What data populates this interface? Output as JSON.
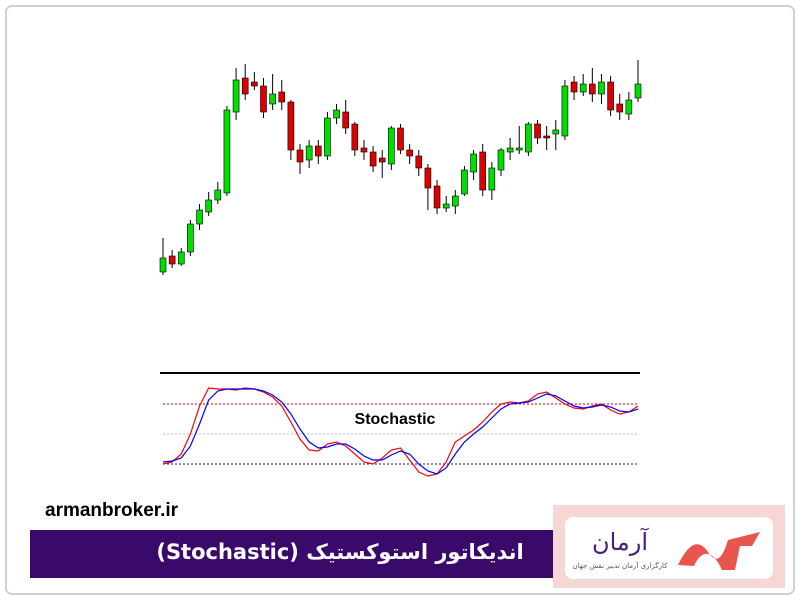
{
  "chart_data": [
    {
      "type": "candlestick",
      "up_color": "#00dd00",
      "down_color": "#dd0000",
      "wick_color": "#000000",
      "ylim": [
        20,
        240
      ],
      "open": [
        28,
        44,
        36,
        48,
        76,
        88,
        100,
        107,
        188,
        222,
        218,
        214,
        196,
        208,
        198,
        150,
        140,
        154,
        144,
        182,
        188,
        176,
        152,
        148,
        142,
        136,
        172,
        150,
        144,
        132,
        114,
        92,
        94,
        106,
        128,
        148,
        110,
        130,
        148,
        150,
        148,
        176,
        164,
        166,
        164,
        218,
        208,
        216,
        206,
        218,
        196,
        186,
        202
      ],
      "high": [
        62,
        50,
        52,
        80,
        96,
        108,
        118,
        194,
        232,
        236,
        228,
        222,
        226,
        220,
        200,
        156,
        160,
        160,
        188,
        196,
        200,
        178,
        160,
        154,
        150,
        174,
        176,
        156,
        150,
        136,
        120,
        104,
        110,
        134,
        150,
        156,
        138,
        152,
        162,
        174,
        178,
        180,
        174,
        180,
        220,
        224,
        226,
        232,
        226,
        224,
        206,
        208,
        240
      ],
      "low": [
        25,
        32,
        34,
        44,
        70,
        84,
        96,
        104,
        180,
        200,
        210,
        182,
        190,
        190,
        140,
        126,
        132,
        136,
        140,
        176,
        166,
        144,
        140,
        128,
        122,
        130,
        146,
        136,
        124,
        90,
        86,
        88,
        86,
        104,
        120,
        104,
        100,
        124,
        140,
        146,
        144,
        156,
        150,
        150,
        160,
        200,
        204,
        198,
        196,
        184,
        180,
        180,
        198
      ],
      "close": [
        42,
        36,
        48,
        76,
        90,
        100,
        110,
        190,
        220,
        206,
        214,
        188,
        206,
        198,
        150,
        138,
        154,
        144,
        182,
        190,
        172,
        150,
        148,
        134,
        138,
        172,
        150,
        144,
        132,
        112,
        92,
        96,
        104,
        130,
        146,
        110,
        132,
        150,
        152,
        152,
        176,
        162,
        162,
        170,
        214,
        208,
        216,
        206,
        218,
        190,
        188,
        200,
        216
      ]
    },
    {
      "type": "line",
      "title": "Stochastic",
      "ylim": [
        0,
        100
      ],
      "levels": [
        80,
        50,
        20
      ],
      "level_colors": [
        "#cc0000",
        "#bbbbbb",
        "#1a1a8c"
      ],
      "series": [
        {
          "color": "#ff0000",
          "values": [
            20,
            22,
            30,
            50,
            78,
            96,
            95,
            95,
            94,
            96,
            95,
            92,
            87,
            78,
            62,
            45,
            34,
            33,
            40,
            42,
            38,
            30,
            22,
            20,
            26,
            34,
            36,
            24,
            12,
            8,
            10,
            22,
            42,
            48,
            54,
            62,
            72,
            80,
            82,
            81,
            83,
            90,
            92,
            86,
            80,
            76,
            75,
            78,
            80,
            74,
            70,
            72,
            78
          ]
        },
        {
          "color": "#0000ff",
          "values": [
            22,
            23,
            26,
            38,
            60,
            84,
            93,
            95,
            95,
            95,
            95,
            93,
            89,
            82,
            70,
            55,
            42,
            36,
            37,
            40,
            40,
            35,
            28,
            24,
            24,
            29,
            33,
            30,
            20,
            13,
            10,
            16,
            30,
            42,
            50,
            57,
            66,
            75,
            80,
            81,
            82,
            86,
            90,
            88,
            83,
            78,
            76,
            77,
            79,
            77,
            73,
            72,
            75
          ]
        }
      ]
    }
  ],
  "footer": {
    "site": "armanbroker.ir",
    "banner": "اندیکاتور استوکستیک (Stochastic)",
    "logo_name": "آرمان",
    "logo_tagline": "کارگزاری آرمان تدبیر نقش جهان"
  }
}
